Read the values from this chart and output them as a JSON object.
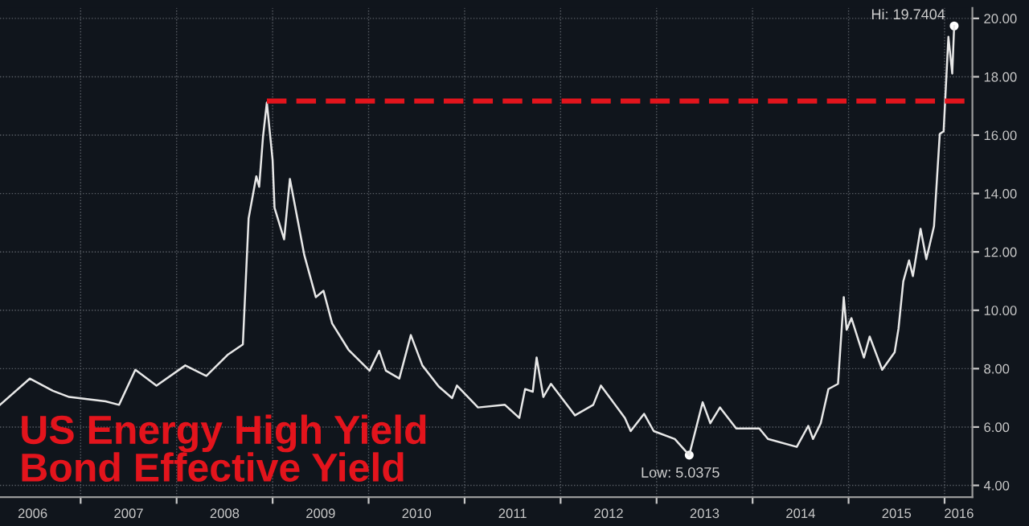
{
  "chart_data": {
    "type": "line",
    "title": "US Energy High Yield\nBond Effective Yield",
    "series": [
      {
        "color": "#e8e8e8",
        "x": [
          2006.16,
          2006.47,
          2006.71,
          2006.88,
          2007.26,
          2007.4,
          2007.57,
          2007.79,
          2008.09,
          2008.31,
          2008.53,
          2008.69,
          2008.75,
          2008.83,
          2008.86,
          2008.9,
          2008.94,
          2009.0,
          2009.02,
          2009.12,
          2009.18,
          2009.33,
          2009.45,
          2009.53,
          2009.62,
          2009.79,
          2010.01,
          2010.11,
          2010.18,
          2010.32,
          2010.44,
          2010.56,
          2010.73,
          2010.87,
          2010.92,
          2011.14,
          2011.42,
          2011.57,
          2011.63,
          2011.71,
          2011.75,
          2011.82,
          2011.9,
          2012.15,
          2012.34,
          2012.42,
          2012.67,
          2012.73,
          2012.87,
          2012.97,
          2013.19,
          2013.34,
          2013.48,
          2013.56,
          2013.66,
          2013.83,
          2014.07,
          2014.16,
          2014.46,
          2014.58,
          2014.63,
          2014.71,
          2014.79,
          2014.89,
          2014.95,
          2014.98,
          2015.03,
          2015.16,
          2015.22,
          2015.35,
          2015.48,
          2015.52,
          2015.57,
          2015.63,
          2015.67,
          2015.75,
          2015.81,
          2015.89,
          2015.95,
          2015.99,
          2016.04,
          2016.08,
          2016.1
        ],
        "values": [
          6.76,
          7.66,
          7.24,
          7.03,
          6.88,
          6.76,
          7.96,
          7.42,
          8.11,
          7.75,
          8.47,
          8.83,
          13.15,
          14.59,
          14.23,
          15.95,
          17.12,
          15.14,
          13.51,
          12.43,
          14.5,
          11.89,
          10.45,
          10.67,
          9.55,
          8.65,
          7.93,
          8.61,
          7.93,
          7.66,
          9.15,
          8.11,
          7.39,
          6.99,
          7.42,
          6.67,
          6.76,
          6.31,
          7.3,
          7.21,
          8.38,
          7.03,
          7.48,
          6.4,
          6.76,
          7.42,
          6.31,
          5.86,
          6.45,
          5.86,
          5.59,
          5.0375,
          6.85,
          6.13,
          6.67,
          5.95,
          5.95,
          5.59,
          5.32,
          6.04,
          5.59,
          6.13,
          7.3,
          7.48,
          10.45,
          9.33,
          9.73,
          8.38,
          9.1,
          7.96,
          8.56,
          9.37,
          10.99,
          11.71,
          11.17,
          12.79,
          11.75,
          12.88,
          16.04,
          16.13,
          19.37,
          18.11,
          19.7404
        ]
      },
      {
        "color": "#e3141c",
        "line_style": "dashed",
        "x": [
          2008.94,
          2016.29
        ],
        "values": [
          17.17,
          17.17
        ]
      }
    ],
    "annotations": [
      {
        "text": "Hi: 19.7404",
        "x": 2016.1,
        "y": 19.7404
      },
      {
        "text": "Low: 5.0375",
        "x": 2013.34,
        "y": 5.0375
      }
    ],
    "xlim": [
      2006.16,
      2016.29
    ],
    "xticks": [
      {
        "value": 2006.5,
        "label": "2006"
      },
      {
        "value": 2007,
        "label": null
      },
      {
        "value": 2007.5,
        "label": "2007"
      },
      {
        "value": 2008,
        "label": null
      },
      {
        "value": 2008.5,
        "label": "2008"
      },
      {
        "value": 2009,
        "label": null
      },
      {
        "value": 2009.5,
        "label": "2009"
      },
      {
        "value": 2010,
        "label": null
      },
      {
        "value": 2010.5,
        "label": "2010"
      },
      {
        "value": 2011,
        "label": null
      },
      {
        "value": 2011.5,
        "label": "2011"
      },
      {
        "value": 2012,
        "label": null
      },
      {
        "value": 2012.5,
        "label": "2012"
      },
      {
        "value": 2013,
        "label": null
      },
      {
        "value": 2013.5,
        "label": "2013"
      },
      {
        "value": 2014,
        "label": null
      },
      {
        "value": 2014.5,
        "label": "2014"
      },
      {
        "value": 2015,
        "label": null
      },
      {
        "value": 2015.5,
        "label": "2015"
      },
      {
        "value": 2016,
        "label": null
      },
      {
        "value": 2016.15,
        "label": "2016"
      }
    ],
    "ylim": [
      3.6,
      20.36
    ],
    "yticks": [
      {
        "value": 4,
        "label": "4.00"
      },
      {
        "value": 6,
        "label": "6.00"
      },
      {
        "value": 8,
        "label": "8.00"
      },
      {
        "value": 10,
        "label": "10.00"
      },
      {
        "value": 12,
        "label": "12.00"
      },
      {
        "value": 14,
        "label": "14.00"
      },
      {
        "value": 16,
        "label": "16.00"
      },
      {
        "value": 18,
        "label": "18.00"
      },
      {
        "value": 20,
        "label": "20.00"
      }
    ],
    "grid": true,
    "marker": "none",
    "line_style": "solid"
  }
}
